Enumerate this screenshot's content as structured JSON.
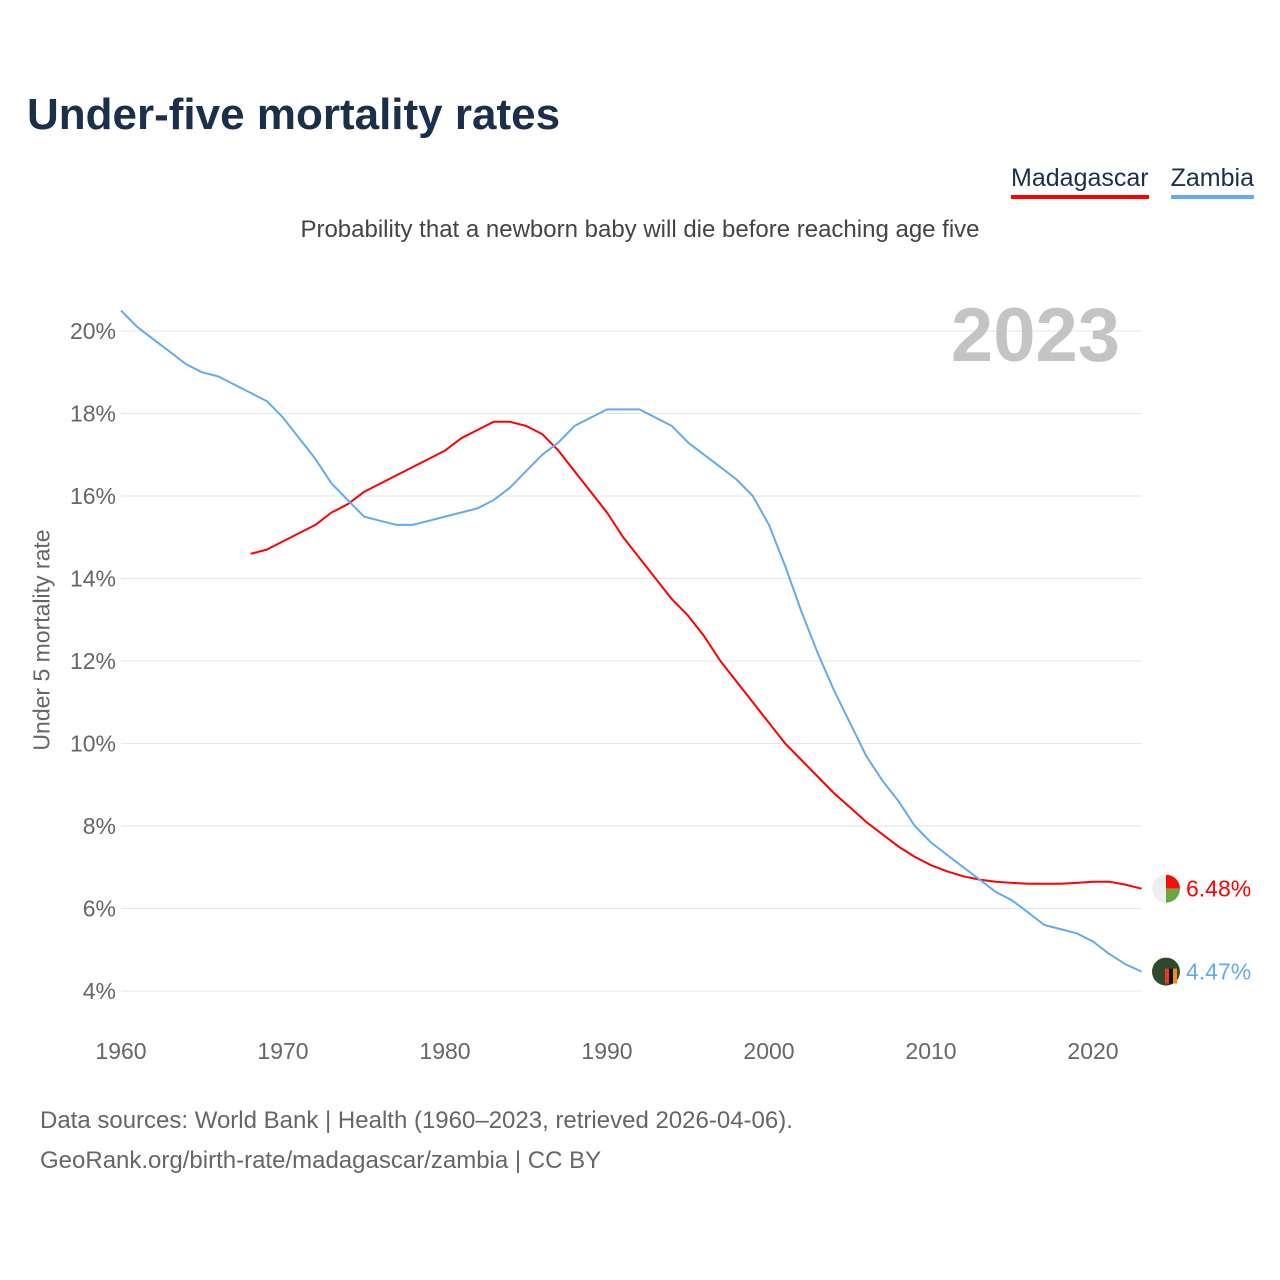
{
  "chart_data": {
    "type": "line",
    "title": "Under-five mortality rates",
    "subtitle": "Probability that a newborn baby will die before reaching age five",
    "ylabel": "Under 5 mortality rate",
    "xlabel": "",
    "year_label": "2023",
    "xlim": [
      1960,
      2023
    ],
    "ylim": [
      4,
      20
    ],
    "x_ticks": [
      "1960",
      "1970",
      "1980",
      "1990",
      "2000",
      "2010",
      "2020"
    ],
    "y_ticks": [
      "4%",
      "6%",
      "8%",
      "10%",
      "12%",
      "14%",
      "16%",
      "18%",
      "20%"
    ],
    "grid": true,
    "legend_position": "top-right",
    "series": [
      {
        "name": "Madagascar",
        "color": "#ff0000",
        "end_label": "6.48%",
        "flag_icon": "madagascar-flag-icon",
        "start_year": 1968,
        "values": [
          14.6,
          14.7,
          14.9,
          15.1,
          15.3,
          15.6,
          15.8,
          16.1,
          16.3,
          16.5,
          16.7,
          16.9,
          17.1,
          17.4,
          17.6,
          17.8,
          17.8,
          17.7,
          17.5,
          17.1,
          16.6,
          16.1,
          15.6,
          15.0,
          14.5,
          14.0,
          13.5,
          13.1,
          12.6,
          12.0,
          11.5,
          11.0,
          10.5,
          10.0,
          9.6,
          9.2,
          8.8,
          8.45,
          8.1,
          7.8,
          7.5,
          7.25,
          7.05,
          6.9,
          6.78,
          6.7,
          6.65,
          6.62,
          6.6,
          6.6,
          6.6,
          6.62,
          6.65,
          6.65,
          6.58,
          6.48
        ]
      },
      {
        "name": "Zambia",
        "color": "#64aaf0",
        "end_label": "4.47%",
        "flag_icon": "zambia-flag-icon",
        "start_year": 1960,
        "values": [
          20.5,
          20.1,
          19.8,
          19.5,
          19.2,
          19.0,
          18.9,
          18.7,
          18.5,
          18.3,
          17.9,
          17.4,
          16.9,
          16.3,
          15.9,
          15.5,
          15.4,
          15.3,
          15.3,
          15.4,
          15.5,
          15.6,
          15.7,
          15.9,
          16.2,
          16.6,
          17.0,
          17.3,
          17.7,
          17.9,
          18.1,
          18.1,
          18.1,
          17.9,
          17.7,
          17.3,
          17.0,
          16.7,
          16.4,
          16.0,
          15.3,
          14.3,
          13.2,
          12.2,
          11.3,
          10.5,
          9.7,
          9.1,
          8.6,
          8.0,
          7.6,
          7.3,
          7.0,
          6.7,
          6.4,
          6.2,
          5.9,
          5.6,
          5.5,
          5.4,
          5.2,
          4.9,
          4.65,
          4.47
        ]
      }
    ]
  },
  "footer": {
    "line1": "Data sources: World Bank | Health (1960–2023, retrieved 2026-04-06).",
    "line2": "GeoRank.org/birth-rate/madagascar/zambia | CC BY"
  }
}
